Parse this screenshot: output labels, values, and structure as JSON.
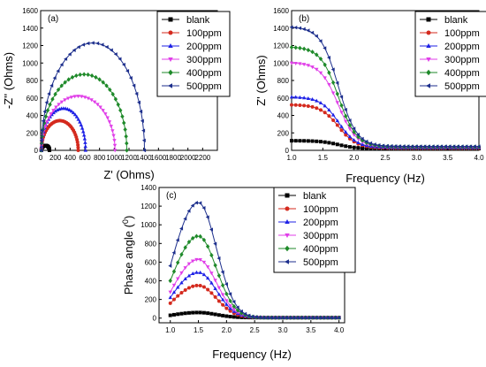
{
  "colors": {
    "blank": "#000000",
    "100ppm": "#d42a1e",
    "200ppm": "#1f22e6",
    "300ppm": "#e03ee8",
    "400ppm": "#1f8a2a",
    "500ppm": "#1c2e8c"
  },
  "chart_data": [
    {
      "type": "scatter",
      "panel_label": "(a)",
      "xlabel": "Z' (Ohms)",
      "ylabel": "-Z'' (Ohms)",
      "xlim": [
        0,
        2400
      ],
      "ylim": [
        0,
        1600
      ],
      "x_ticks": [
        0,
        200,
        400,
        600,
        800,
        1000,
        1200,
        1400,
        1600,
        1800,
        2000,
        2200
      ],
      "y_ticks": [
        0,
        200,
        400,
        600,
        800,
        1000,
        1200,
        1400,
        1600
      ],
      "legend_position": "top-right",
      "series": [
        {
          "name": "blank",
          "marker": "square",
          "x0": 10,
          "x1": 120,
          "peak": 55
        },
        {
          "name": "100ppm",
          "marker": "circle",
          "x0": 10,
          "x1": 510,
          "peak": 340
        },
        {
          "name": "200ppm",
          "marker": "triangle-up",
          "x0": 10,
          "x1": 610,
          "peak": 480
        },
        {
          "name": "300ppm",
          "marker": "triangle-down",
          "x0": 10,
          "x1": 1010,
          "peak": 620
        },
        {
          "name": "400ppm",
          "marker": "diamond",
          "x0": 10,
          "x1": 1170,
          "peak": 870
        },
        {
          "name": "500ppm",
          "marker": "triangle-left",
          "x0": 10,
          "x1": 1410,
          "peak": 1230
        }
      ]
    },
    {
      "type": "line",
      "panel_label": "(b)",
      "xlabel": "Frequency (Hz)",
      "ylabel": "Z' (Ohms)",
      "xlim": [
        1.0,
        4.0
      ],
      "ylim": [
        0,
        1600
      ],
      "x_ticks": [
        1.0,
        1.5,
        2.0,
        2.5,
        3.0,
        3.5,
        4.0
      ],
      "y_ticks": [
        0,
        200,
        400,
        600,
        800,
        1000,
        1200,
        1400,
        1600
      ],
      "legend_position": "top-right",
      "series": [
        {
          "name": "blank",
          "marker": "square",
          "start": 110,
          "end": 20
        },
        {
          "name": "100ppm",
          "marker": "circle",
          "start": 520,
          "end": 25
        },
        {
          "name": "200ppm",
          "marker": "triangle-up",
          "start": 610,
          "end": 30
        },
        {
          "name": "300ppm",
          "marker": "triangle-down",
          "start": 1000,
          "end": 35
        },
        {
          "name": "400ppm",
          "marker": "diamond",
          "start": 1180,
          "end": 40
        },
        {
          "name": "500ppm",
          "marker": "triangle-left",
          "start": 1410,
          "end": 45
        }
      ]
    },
    {
      "type": "line",
      "panel_label": "(c)",
      "xlabel": "Frequency (Hz)",
      "ylabel": "Phase angle (0)",
      "ylabel_main": "Phase angle (",
      "ylabel_sup": "0",
      "ylabel_end": ")",
      "xlim": [
        0.8,
        4.1
      ],
      "ylim": [
        -50,
        1400
      ],
      "x_ticks": [
        1.0,
        1.5,
        2.0,
        2.5,
        3.0,
        3.5,
        4.0
      ],
      "y_ticks": [
        0,
        200,
        400,
        600,
        800,
        1000,
        1200,
        1400
      ],
      "legend_position": "top-right",
      "series": [
        {
          "name": "blank",
          "marker": "square",
          "start": 30,
          "peak": 60,
          "end": 5
        },
        {
          "name": "100ppm",
          "marker": "circle",
          "start": 160,
          "peak": 350,
          "end": 5
        },
        {
          "name": "200ppm",
          "marker": "triangle-up",
          "start": 220,
          "peak": 490,
          "end": 5
        },
        {
          "name": "300ppm",
          "marker": "triangle-down",
          "start": 280,
          "peak": 630,
          "end": 5
        },
        {
          "name": "400ppm",
          "marker": "diamond",
          "start": 400,
          "peak": 880,
          "end": 5
        },
        {
          "name": "500ppm",
          "marker": "triangle-left",
          "start": 560,
          "peak": 1240,
          "end": 5
        }
      ]
    }
  ]
}
